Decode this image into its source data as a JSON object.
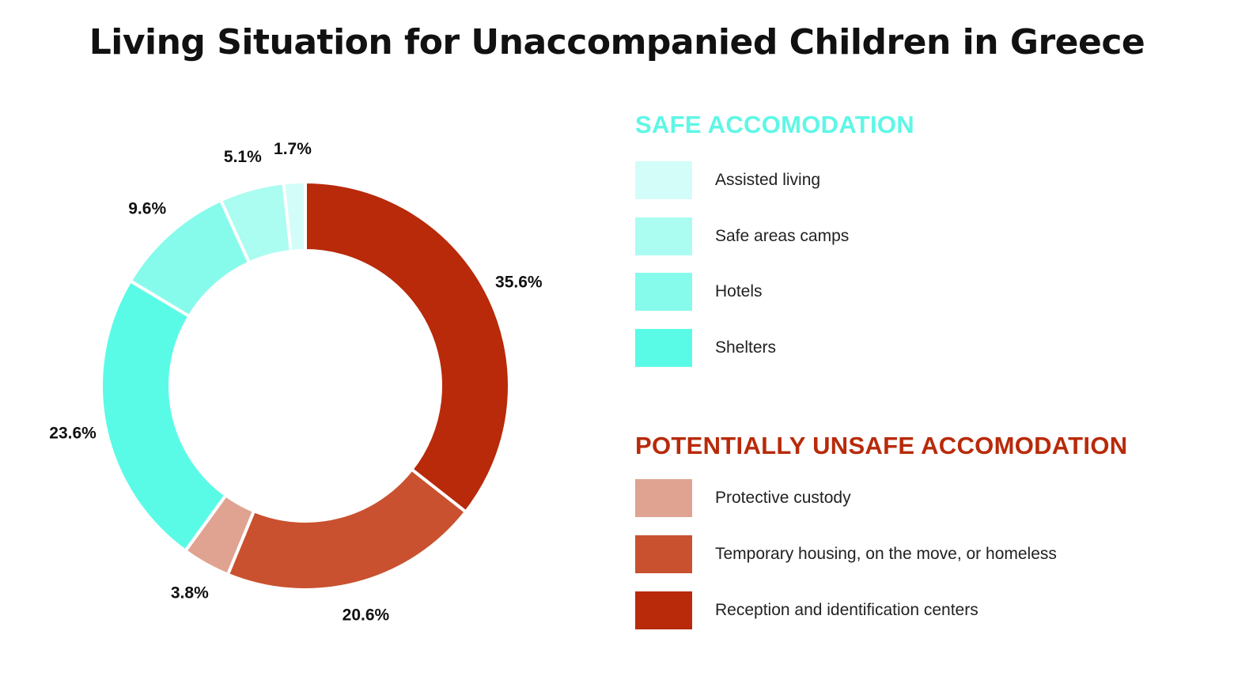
{
  "title": "Living Situation for Unaccompanied Children in Greece",
  "legend": {
    "safe_heading": "SAFE ACCOMODATION",
    "safe_color": "#5ef7e6",
    "unsafe_heading": "POTENTIALLY UNSAFE ACCOMODATION",
    "unsafe_color": "#b82a0a",
    "safe_items": [
      {
        "label": "Assisted living",
        "color": "#d3fdf8"
      },
      {
        "label": "Safe areas camps",
        "color": "#abfcf1"
      },
      {
        "label": "Hotels",
        "color": "#86fbec"
      },
      {
        "label": "Shelters",
        "color": "#5afbe6"
      }
    ],
    "unsafe_items": [
      {
        "label": "Protective custody",
        "color": "#e0a391"
      },
      {
        "label": "Temporary housing, on the move, or homeless",
        "color": "#c9512f"
      },
      {
        "label": "Reception and identification centers",
        "color": "#b82a0a"
      }
    ]
  },
  "chart_data": {
    "type": "pie",
    "donut": true,
    "title": "Living Situation for Unaccompanied Children in Greece",
    "start": "top",
    "direction": "clockwise",
    "slices": [
      {
        "name": "Reception and identification centers",
        "value": 35.6,
        "label": "35.6%",
        "color": "#b82a0a"
      },
      {
        "name": "Temporary housing, on the move, or homeless",
        "value": 20.6,
        "label": "20.6%",
        "color": "#c9512f"
      },
      {
        "name": "Protective custody",
        "value": 3.8,
        "label": "3.8%",
        "color": "#e0a391"
      },
      {
        "name": "Shelters",
        "value": 23.6,
        "label": "23.6%",
        "color": "#5afbe6"
      },
      {
        "name": "Hotels",
        "value": 9.6,
        "label": "9.6%",
        "color": "#86fbec"
      },
      {
        "name": "Safe areas camps",
        "value": 5.1,
        "label": "5.1%",
        "color": "#abfcf1"
      },
      {
        "name": "Assisted living",
        "value": 1.7,
        "label": "1.7%",
        "color": "#d3fdf8"
      }
    ]
  }
}
